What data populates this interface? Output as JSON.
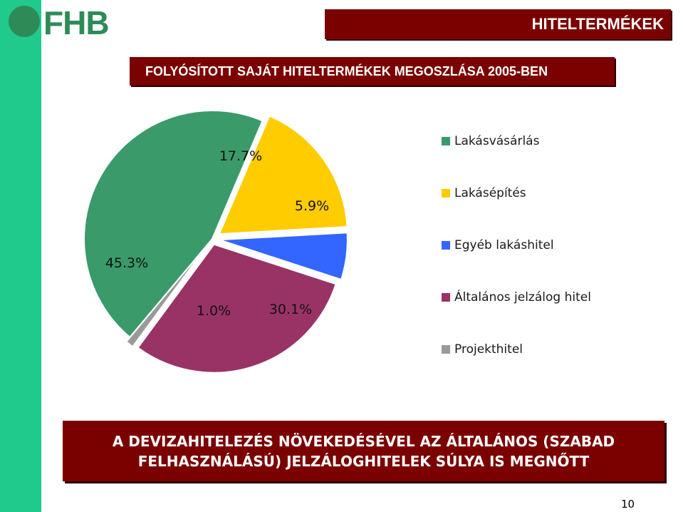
{
  "header": {
    "title": "HITELTERMÉKEK",
    "logo_text": "FHB"
  },
  "chart_title": "FOLYÓSÍTOTT SAJÁT HITELTERMÉKEK MEGOSZLÁSA 2005-BEN",
  "chart_data": {
    "type": "pie",
    "title": "FOLYÓSÍTOTT SAJÁT HITELTERMÉKEK MEGOSZLÁSA 2005-BEN",
    "legend_position": "right",
    "slices": [
      {
        "name": "Lakásvásárlás",
        "value": 45.3,
        "label": "45.3%",
        "color": "#3a9a6a"
      },
      {
        "name": "Lakásépítés",
        "value": 17.7,
        "label": "17.7%",
        "color": "#ffcc00"
      },
      {
        "name": "Egyéb lakáshitel",
        "value": 5.9,
        "label": "5.9%",
        "color": "#3366ff"
      },
      {
        "name": "Általános jelzálog hitel",
        "value": 30.1,
        "label": "30.1%",
        "color": "#993366"
      },
      {
        "name": "Projekthitel",
        "value": 1.0,
        "label": "1.0%",
        "color": "#999999"
      }
    ]
  },
  "bottom_note": {
    "line1": "A DEVIZAHITELEZÉS NÖVEKEDÉSÉVEL AZ ÁLTALÁNOS (SZABAD",
    "line2": "FELHASZNÁLÁSÚ) JELZÁLOGHITELEK SÚLYA IS MEGNŐTT"
  },
  "page_number": "10"
}
